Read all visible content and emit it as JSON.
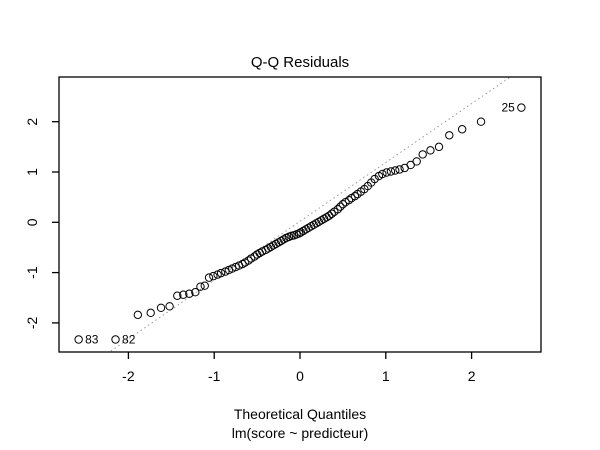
{
  "chart_data": {
    "type": "scatter",
    "title": "Q-Q Residuals",
    "xlabel": "Theoretical Quantiles",
    "sublabel": "lm(score ~ predicteur)",
    "ylabel": "",
    "x_ticks": [
      -2,
      -1,
      0,
      1,
      2
    ],
    "y_ticks": [
      -2,
      -1,
      0,
      1,
      2
    ],
    "xlim": [
      -2.81,
      2.81
    ],
    "ylim": [
      -2.58,
      2.89
    ],
    "grid": false,
    "legend": "none",
    "marker": {
      "shape": "open-circle",
      "color": "#000000",
      "radius_px": 3.7
    },
    "reference_line": {
      "slope": 1.17,
      "intercept": 0.02,
      "style": "dotted",
      "color": "#999999"
    },
    "points": {
      "x": [
        -2.58,
        -2.15,
        -1.89,
        -1.74,
        -1.62,
        -1.52,
        -1.43,
        -1.36,
        -1.29,
        -1.22,
        -1.16,
        -1.11,
        -1.06,
        -1.01,
        -0.96,
        -0.92,
        -0.87,
        -0.83,
        -0.79,
        -0.75,
        -0.71,
        -0.67,
        -0.64,
        -0.6,
        -0.57,
        -0.53,
        -0.5,
        -0.47,
        -0.44,
        -0.4,
        -0.37,
        -0.34,
        -0.31,
        -0.28,
        -0.25,
        -0.22,
        -0.19,
        -0.16,
        -0.13,
        -0.1,
        -0.07,
        -0.04,
        -0.01,
        0.01,
        0.04,
        0.07,
        0.1,
        0.13,
        0.16,
        0.19,
        0.22,
        0.25,
        0.28,
        0.31,
        0.34,
        0.37,
        0.4,
        0.44,
        0.47,
        0.5,
        0.53,
        0.57,
        0.6,
        0.64,
        0.67,
        0.71,
        0.75,
        0.79,
        0.83,
        0.87,
        0.92,
        0.96,
        1.01,
        1.06,
        1.11,
        1.16,
        1.22,
        1.29,
        1.36,
        1.43,
        1.52,
        1.62,
        1.74,
        1.89,
        2.11,
        2.58
      ],
      "y": [
        -2.33,
        -2.33,
        -1.84,
        -1.8,
        -1.7,
        -1.67,
        -1.46,
        -1.44,
        -1.42,
        -1.39,
        -1.28,
        -1.26,
        -1.1,
        -1.07,
        -1.04,
        -1.01,
        -0.98,
        -0.95,
        -0.92,
        -0.89,
        -0.86,
        -0.83,
        -0.8,
        -0.76,
        -0.72,
        -0.68,
        -0.64,
        -0.61,
        -0.58,
        -0.55,
        -0.52,
        -0.49,
        -0.46,
        -0.43,
        -0.4,
        -0.37,
        -0.34,
        -0.31,
        -0.29,
        -0.27,
        -0.26,
        -0.24,
        -0.22,
        -0.2,
        -0.17,
        -0.14,
        -0.11,
        -0.08,
        -0.05,
        -0.02,
        0.01,
        0.04,
        0.07,
        0.1,
        0.13,
        0.17,
        0.21,
        0.26,
        0.31,
        0.36,
        0.4,
        0.44,
        0.48,
        0.52,
        0.56,
        0.61,
        0.66,
        0.72,
        0.79,
        0.86,
        0.92,
        0.96,
        0.99,
        1.01,
        1.03,
        1.05,
        1.08,
        1.14,
        1.21,
        1.35,
        1.43,
        1.5,
        1.73,
        1.85,
        2.0,
        2.28
      ]
    },
    "labeled_points": [
      {
        "label": "83",
        "x": -2.58,
        "y": -2.33,
        "side": "right"
      },
      {
        "label": "82",
        "x": -2.15,
        "y": -2.33,
        "side": "right"
      },
      {
        "label": "25",
        "x": 2.58,
        "y": 2.28,
        "side": "left"
      }
    ],
    "colors": {
      "background": "#ffffff",
      "frame": "#000000",
      "text": "#000000"
    }
  }
}
